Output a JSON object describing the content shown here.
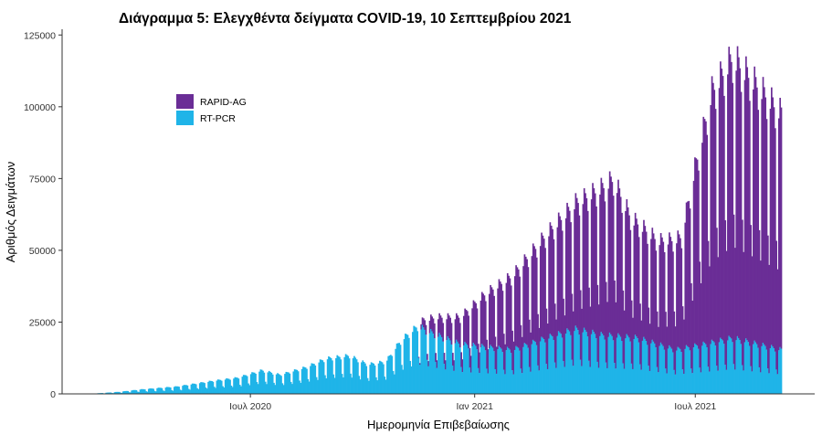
{
  "chart_data": {
    "type": "bar",
    "stacked": true,
    "title": "Διάγραμμα 5: Ελεγχθέντα δείγματα COVID-19, 10 Σεπτεμβρίου 2021",
    "xlabel": "Ημερομηνία Επιβεβαίωσης",
    "ylabel": "Αριθμός Δειγμάτων",
    "x_range": [
      "2020-02-26",
      "2021-09-10"
    ],
    "ylim": [
      0,
      127000
    ],
    "y_ticks": [
      {
        "value": 0,
        "label": "0"
      },
      {
        "value": 25000,
        "label": "25000"
      },
      {
        "value": 50000,
        "label": "50000"
      },
      {
        "value": 75000,
        "label": "75000"
      },
      {
        "value": 100000,
        "label": "100000"
      },
      {
        "value": 125000,
        "label": "125000"
      }
    ],
    "x_ticks": [
      {
        "date": "2020-07-01",
        "label": "Ιουλ 2020"
      },
      {
        "date": "2021-01-01",
        "label": "Ιαν 2021"
      },
      {
        "date": "2021-07-01",
        "label": "Ιουλ 2021"
      }
    ],
    "grid": false,
    "legend_position": "top-left",
    "series": [
      {
        "name": "RAPID-AG",
        "color": "#6A2D96",
        "keyframes": [
          {
            "date": "2020-02-26",
            "value": 0
          },
          {
            "date": "2020-11-15",
            "value": 0
          },
          {
            "date": "2020-11-20",
            "value": 3000
          },
          {
            "date": "2020-12-01",
            "value": 6000
          },
          {
            "date": "2020-12-20",
            "value": 9000
          },
          {
            "date": "2021-01-10",
            "value": 18000
          },
          {
            "date": "2021-02-01",
            "value": 25000
          },
          {
            "date": "2021-03-01",
            "value": 35000
          },
          {
            "date": "2021-04-01",
            "value": 45000
          },
          {
            "date": "2021-04-25",
            "value": 53000
          },
          {
            "date": "2021-05-10",
            "value": 40000
          },
          {
            "date": "2021-06-01",
            "value": 35000
          },
          {
            "date": "2021-06-20",
            "value": 38000
          },
          {
            "date": "2021-07-01",
            "value": 60000
          },
          {
            "date": "2021-07-15",
            "value": 85000
          },
          {
            "date": "2021-08-01",
            "value": 95000
          },
          {
            "date": "2021-08-20",
            "value": 88000
          },
          {
            "date": "2021-09-10",
            "value": 80000
          }
        ]
      },
      {
        "name": "RT-PCR",
        "color": "#1FB4E8",
        "keyframes": [
          {
            "date": "2020-02-26",
            "value": 200
          },
          {
            "date": "2020-03-15",
            "value": 700
          },
          {
            "date": "2020-04-01",
            "value": 1500
          },
          {
            "date": "2020-05-01",
            "value": 2500
          },
          {
            "date": "2020-06-01",
            "value": 4500
          },
          {
            "date": "2020-06-20",
            "value": 5500
          },
          {
            "date": "2020-07-10",
            "value": 8000
          },
          {
            "date": "2020-07-25",
            "value": 6500
          },
          {
            "date": "2020-08-15",
            "value": 9000
          },
          {
            "date": "2020-09-01",
            "value": 12000
          },
          {
            "date": "2020-09-20",
            "value": 13000
          },
          {
            "date": "2020-10-05",
            "value": 10000
          },
          {
            "date": "2020-10-20",
            "value": 11000
          },
          {
            "date": "2020-11-01",
            "value": 18000
          },
          {
            "date": "2020-11-15",
            "value": 23000
          },
          {
            "date": "2020-12-01",
            "value": 20000
          },
          {
            "date": "2020-12-20",
            "value": 17000
          },
          {
            "date": "2021-01-10",
            "value": 16000
          },
          {
            "date": "2021-02-01",
            "value": 15000
          },
          {
            "date": "2021-03-01",
            "value": 19000
          },
          {
            "date": "2021-03-25",
            "value": 22000
          },
          {
            "date": "2021-04-15",
            "value": 20000
          },
          {
            "date": "2021-05-15",
            "value": 19000
          },
          {
            "date": "2021-06-15",
            "value": 15000
          },
          {
            "date": "2021-07-10",
            "value": 17000
          },
          {
            "date": "2021-08-01",
            "value": 19000
          },
          {
            "date": "2021-09-10",
            "value": 15000
          }
        ]
      }
    ]
  }
}
